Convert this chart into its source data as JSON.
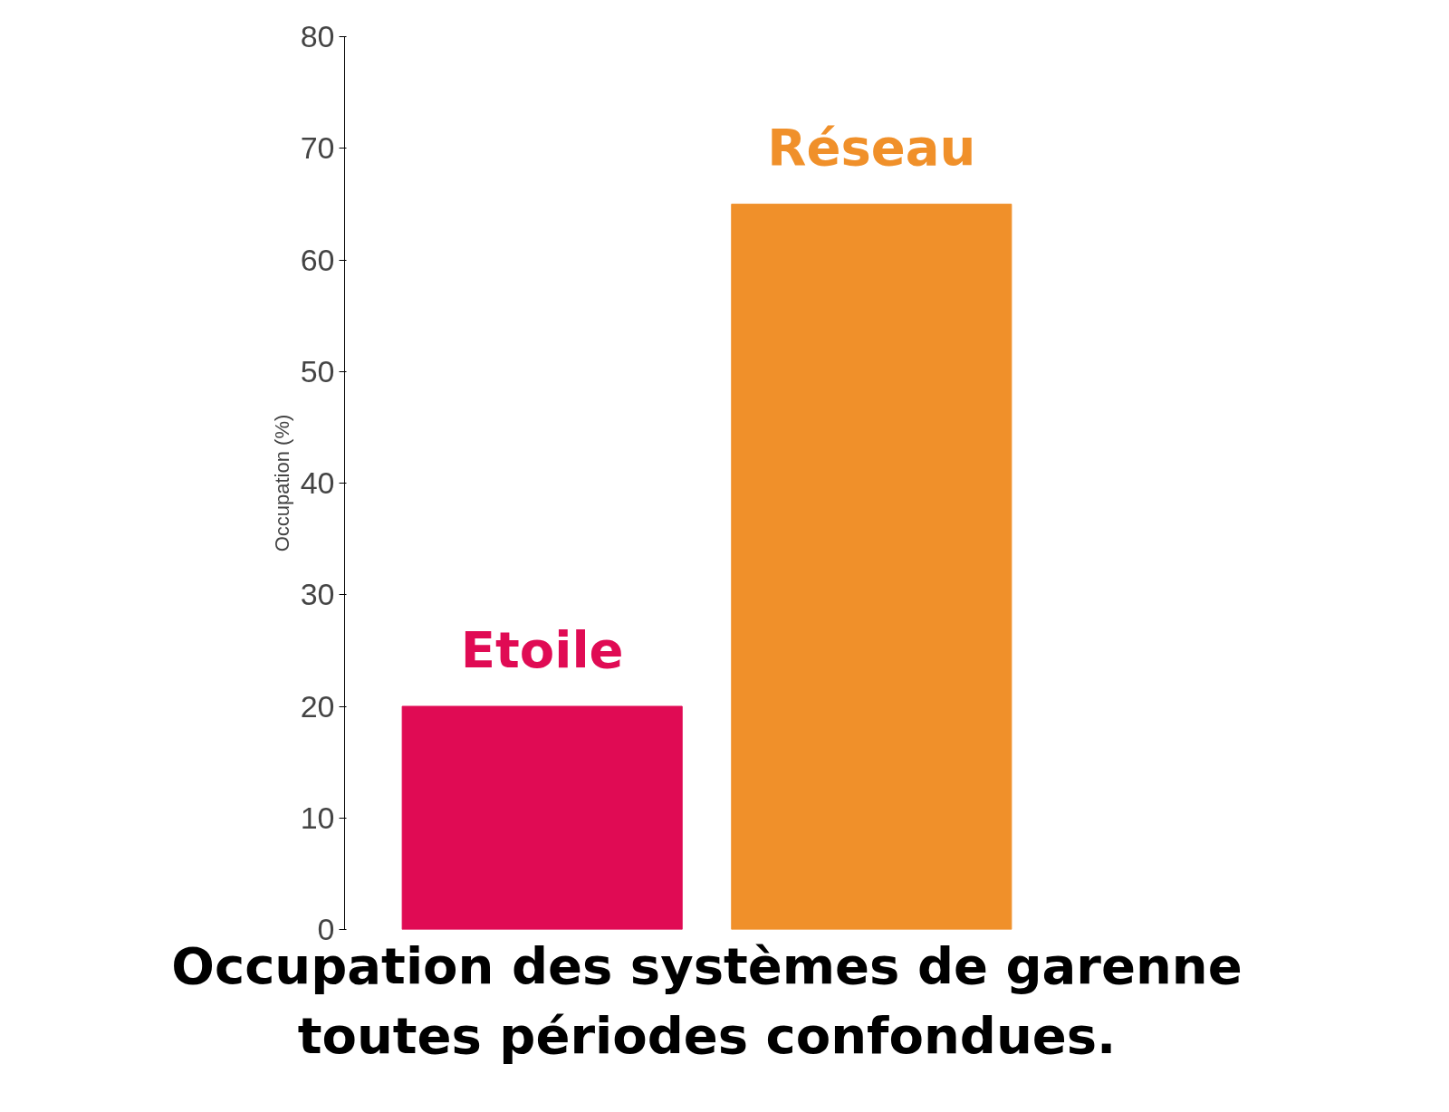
{
  "chart_data": {
    "type": "bar",
    "title": "Occupation des systèmes de garenne\ntoutes périodes confondues.",
    "ylabel": "Occupation (%)",
    "categories": [
      "Etoile",
      "Réseau"
    ],
    "values": [
      20,
      65
    ],
    "colors": [
      "#e00b54",
      "#f0902a"
    ],
    "ylim": [
      0,
      80
    ],
    "yticks": [
      0,
      10,
      20,
      30,
      40,
      50,
      60,
      70,
      80
    ],
    "grid": false
  }
}
